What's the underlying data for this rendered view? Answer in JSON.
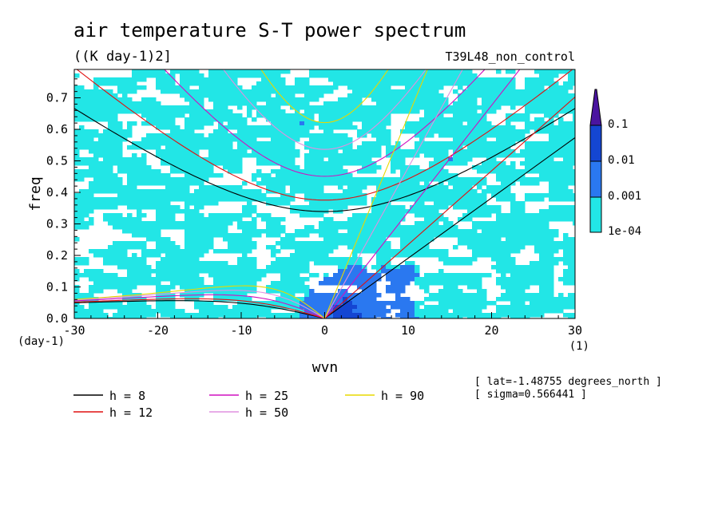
{
  "chart_data": {
    "type": "heatmap",
    "title": "air temperature S-T power spectrum",
    "subtitle": "((K day-1)2]",
    "run_label": "T39L48_non_control",
    "xlabel": "wvn",
    "ylabel": "freq",
    "x_unit": "(1)",
    "y_unit": "(day-1)",
    "xlim": [
      -30,
      30
    ],
    "ylim": [
      0,
      0.79
    ],
    "x_ticks": [
      "-30",
      "-20",
      "-10",
      "0",
      "10",
      "20",
      "30"
    ],
    "x_tick_values": [
      -30,
      -20,
      -10,
      0,
      10,
      20,
      30
    ],
    "y_ticks": [
      "0.0",
      "0.1",
      "0.2",
      "0.3",
      "0.4",
      "0.5",
      "0.6",
      "0.7"
    ],
    "y_tick_values": [
      0,
      0.1,
      0.2,
      0.3,
      0.4,
      0.5,
      0.6,
      0.7
    ],
    "color_levels": [
      "1e-04",
      "0.001",
      "0.01",
      "0.1"
    ],
    "level_values": [
      0.0001,
      0.001,
      0.01,
      0.1
    ],
    "level_colors": [
      "#22e6e6",
      "#2a78f0",
      "#1446d2",
      "#0a10a8",
      "#4a14a0"
    ],
    "info": [
      "[ lat=-1.48755 degrees_north ]",
      "[ sigma=0.566441 ]"
    ],
    "dispersion_legend": [
      {
        "label": "h =  8",
        "h": 8,
        "color": "#000000"
      },
      {
        "label": "h = 12",
        "h": 12,
        "color": "#e01010"
      },
      {
        "label": "h = 25",
        "h": 25,
        "color": "#d010c0"
      },
      {
        "label": "h = 50",
        "h": 50,
        "color": "#e090e0"
      },
      {
        "label": "h = 90",
        "h": 90,
        "color": "#e8d800"
      }
    ],
    "grid": false,
    "legend_position": "below-left"
  }
}
